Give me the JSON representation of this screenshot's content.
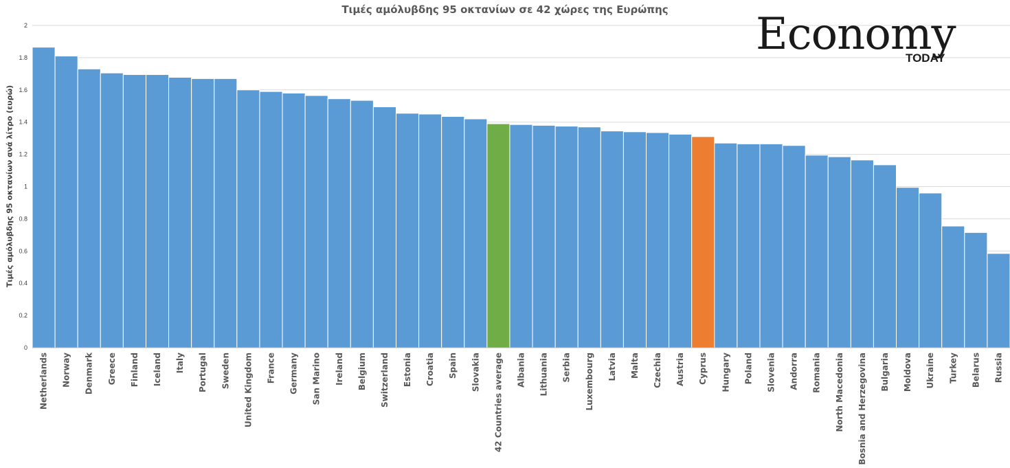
{
  "chart_data": {
    "type": "bar",
    "title": "Τιμές αμόλυβδης 95 οκτανίων σε 42 χώρες της Ευρώπης",
    "ylabel": "Τιμές αμόλυβδης 95 οκτανίων ανά λίτρο (ευρώ)",
    "xlabel": "",
    "ylim": [
      0,
      2
    ],
    "yticks": [
      "0",
      "0.2",
      "0.4",
      "0.6",
      "0.8",
      "1",
      "1.2",
      "1.4",
      "1.6",
      "1.8",
      "2"
    ],
    "grid": true,
    "legend": "none",
    "categories": [
      "Netherlands",
      "Norway",
      "Denmark",
      "Greece",
      "Finland",
      "Iceland",
      "Italy",
      "Portugal",
      "Sweden",
      "United Kingdom",
      "France",
      "Germany",
      "San Marino",
      "Ireland",
      "Belgium",
      "Switzerland",
      "Estonia",
      "Croatia",
      "Spain",
      "Slovakia",
      "42 Countries average",
      "Albania",
      "Lithuania",
      "Serbia",
      "Luxembourg",
      "Latvia",
      "Malta",
      "Czechia",
      "Austria",
      "Cyprus",
      "Hungary",
      "Poland",
      "Slovenia",
      "Andorra",
      "Romania",
      "North Macedonia",
      "Bosnia and Herzegovina",
      "Bulgaria",
      "Moldova",
      "Ukraine",
      "Turkey",
      "Belarus",
      "Russia"
    ],
    "values": [
      1.865,
      1.81,
      1.73,
      1.705,
      1.695,
      1.695,
      1.678,
      1.67,
      1.67,
      1.6,
      1.59,
      1.58,
      1.565,
      1.545,
      1.535,
      1.495,
      1.455,
      1.45,
      1.435,
      1.42,
      1.39,
      1.385,
      1.38,
      1.375,
      1.37,
      1.345,
      1.34,
      1.335,
      1.325,
      1.31,
      1.27,
      1.265,
      1.265,
      1.255,
      1.195,
      1.185,
      1.165,
      1.135,
      0.995,
      0.96,
      0.755,
      0.715,
      0.585
    ],
    "colors": {
      "default": "#5B9BD5",
      "average": "#70AD47",
      "highlight": "#ED7D31",
      "average_category": "42 Countries average",
      "highlight_category": "Cyprus"
    }
  },
  "logo": {
    "main": "Economy",
    "sub": "TODAY"
  }
}
